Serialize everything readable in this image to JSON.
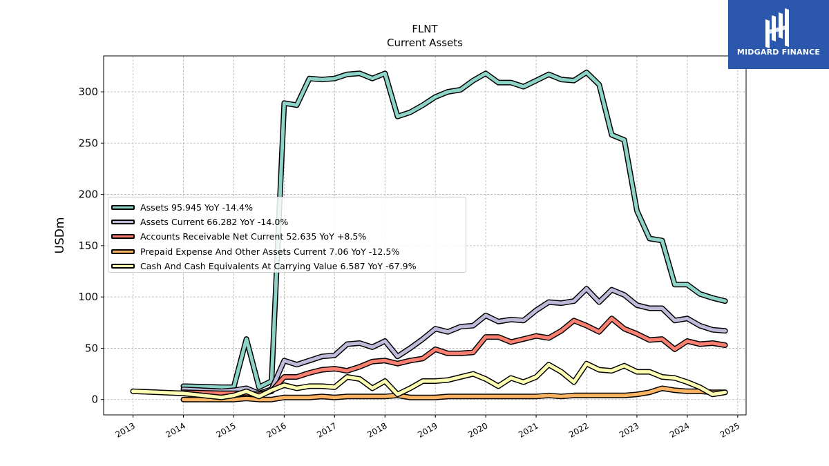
{
  "chart_data": {
    "type": "line",
    "title": "FLNT",
    "subtitle": "Current  Assets",
    "ylabel": "USDm",
    "xlabel": "",
    "x_ticks": [
      "2013",
      "2014",
      "2015",
      "2016",
      "2017",
      "2018",
      "2019",
      "2020",
      "2021",
      "2022",
      "2023",
      "2024",
      "2025"
    ],
    "y_ticks": [
      "0",
      "50",
      "100",
      "150",
      "200",
      "250",
      "300"
    ],
    "xlim": [
      "2012-06",
      "2025-03"
    ],
    "ylim": [
      -15,
      335
    ],
    "grid": true,
    "legend_position": "center-left",
    "x": [
      "2013-01",
      "2014-01",
      "2014-10",
      "2015-01",
      "2015-04",
      "2015-07",
      "2015-10",
      "2016-01",
      "2016-04",
      "2016-07",
      "2016-10",
      "2017-01",
      "2017-04",
      "2017-07",
      "2017-10",
      "2018-01",
      "2018-04",
      "2018-07",
      "2018-10",
      "2019-01",
      "2019-04",
      "2019-07",
      "2019-10",
      "2020-01",
      "2020-04",
      "2020-07",
      "2020-10",
      "2021-01",
      "2021-04",
      "2021-07",
      "2021-10",
      "2022-01",
      "2022-04",
      "2022-07",
      "2022-10",
      "2023-01",
      "2023-04",
      "2023-07",
      "2023-10",
      "2024-01",
      "2024-04",
      "2024-07",
      "2024-10"
    ],
    "series": [
      {
        "name": "Assets  95.945 YoY -14.4%",
        "color": "#8dd3c7",
        "values": [
          null,
          13,
          12,
          12,
          59,
          12,
          18,
          289,
          287,
          313,
          312,
          313,
          317,
          318,
          313,
          318,
          276,
          280,
          287,
          295,
          300,
          302,
          311,
          318,
          309,
          309,
          305,
          311,
          317,
          312,
          311,
          319,
          307,
          258,
          253,
          184,
          157,
          155,
          112,
          112,
          103,
          99,
          96
        ]
      },
      {
        "name": "Assets Current  66.282 YoY -14.0%",
        "color": "#bebada",
        "values": [
          null,
          10,
          8,
          9,
          11,
          6,
          10,
          38,
          34,
          38,
          42,
          43,
          54,
          55,
          51,
          57,
          42,
          50,
          59,
          69,
          66,
          71,
          72,
          82,
          76,
          78,
          77,
          87,
          95,
          94,
          96,
          108,
          95,
          107,
          102,
          92,
          89,
          89,
          77,
          79,
          72,
          68,
          67
        ]
      },
      {
        "name": "Accounts Receivable Net Current  52.635 YoY +8.5%",
        "color": "#fb8072",
        "values": [
          null,
          7,
          6,
          6,
          6,
          5,
          8,
          22,
          22,
          26,
          29,
          30,
          28,
          32,
          37,
          38,
          35,
          38,
          40,
          49,
          45,
          45,
          46,
          61,
          61,
          56,
          59,
          62,
          60,
          67,
          77,
          72,
          66,
          79,
          69,
          64,
          58,
          59,
          49,
          57,
          54,
          55,
          53
        ]
      },
      {
        "name": "Prepaid Expense And Other Assets Current  7.06 YoY -12.5%",
        "color": "#fdb462",
        "values": [
          null,
          0,
          0,
          0,
          1,
          0,
          0,
          2,
          2,
          2,
          3,
          2,
          3,
          3,
          3,
          3,
          4,
          2,
          2,
          2,
          3,
          3,
          3,
          3,
          3,
          3,
          3,
          3,
          4,
          3,
          4,
          4,
          4,
          4,
          4,
          5,
          7,
          11,
          9,
          8,
          8,
          7,
          7
        ]
      },
      {
        "name": "Cash And Cash Equivalents At Carrying Value  6.587 YoY -67.9%",
        "color": "#ffffb3",
        "values": [
          8,
          6,
          2,
          4,
          8,
          3,
          9,
          14,
          11,
          13,
          13,
          12,
          22,
          20,
          11,
          18,
          5,
          11,
          18,
          18,
          19,
          22,
          25,
          20,
          13,
          21,
          17,
          22,
          34,
          27,
          17,
          35,
          29,
          28,
          33,
          27,
          27,
          22,
          21,
          17,
          12,
          5,
          7
        ]
      }
    ]
  },
  "logo": {
    "text": "MIDGARD FINANCE"
  }
}
